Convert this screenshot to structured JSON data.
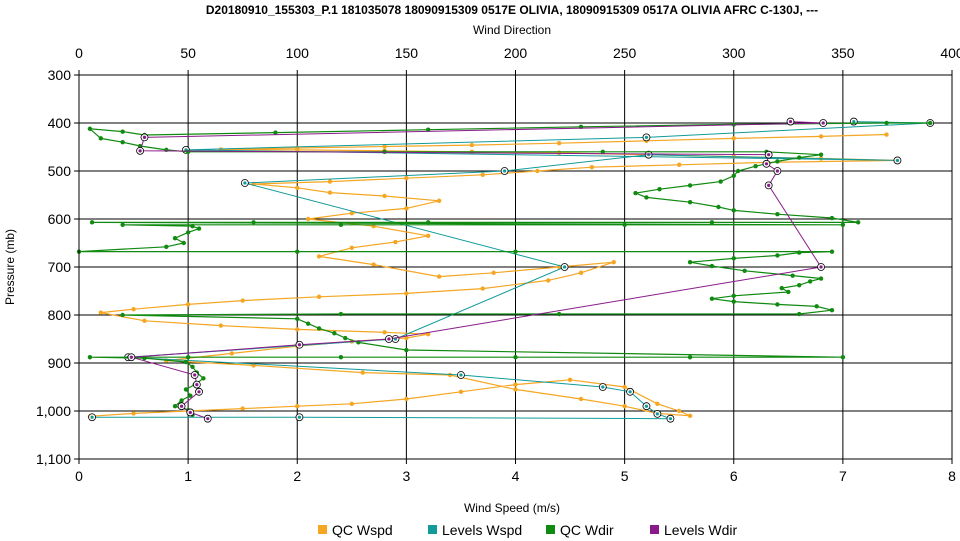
{
  "chart_data": {
    "type": "scatter",
    "title": "D20180910_155303_P.1 181035078 18090915309 0517E OLIVIA, 18090915309 0517A OLIVIA AFRC C-130J, ---",
    "y_axis": {
      "label": "Pressure (mb)",
      "range": [
        300,
        1100
      ],
      "inverted": true,
      "ticks": [
        "300",
        "400",
        "500",
        "600",
        "700",
        "800",
        "900",
        "1,000",
        "1,100"
      ]
    },
    "x_bottom": {
      "label": "Wind Speed (m/s)",
      "range": [
        0,
        8
      ],
      "ticks": [
        "0",
        "1",
        "2",
        "3",
        "4",
        "5",
        "6",
        "7",
        "8"
      ]
    },
    "x_top": {
      "label": "Wind Direction",
      "range": [
        0,
        400
      ],
      "ticks": [
        "0",
        "50",
        "100",
        "150",
        "200",
        "250",
        "300",
        "350",
        "400"
      ]
    },
    "grid": true,
    "legend_position": "bottom",
    "series": [
      {
        "name": "QC Wspd",
        "color": "#f5a623",
        "axis": "bottom",
        "marker": "dot",
        "points": [
          [
            0.1,
            1011
          ],
          [
            0.5,
            1005
          ],
          [
            1.0,
            1000
          ],
          [
            1.5,
            995
          ],
          [
            2.0,
            990
          ],
          [
            2.5,
            985
          ],
          [
            3.0,
            975
          ],
          [
            3.5,
            960
          ],
          [
            4.0,
            945
          ],
          [
            4.5,
            935
          ],
          [
            5.0,
            950
          ],
          [
            5.3,
            985
          ],
          [
            5.5,
            1000
          ],
          [
            5.6,
            1010
          ],
          [
            5.3,
            1005
          ],
          [
            5.0,
            990
          ],
          [
            4.6,
            975
          ],
          [
            4.0,
            955
          ],
          [
            3.4,
            925
          ],
          [
            2.6,
            920
          ],
          [
            1.6,
            905
          ],
          [
            0.8,
            895
          ],
          [
            1.4,
            880
          ],
          [
            2.0,
            865
          ],
          [
            2.5,
            855
          ],
          [
            3.0,
            848
          ],
          [
            3.2,
            840
          ],
          [
            2.8,
            836
          ],
          [
            2.0,
            830
          ],
          [
            1.3,
            822
          ],
          [
            0.6,
            812
          ],
          [
            0.2,
            795
          ],
          [
            0.5,
            788
          ],
          [
            1.0,
            778
          ],
          [
            1.5,
            770
          ],
          [
            2.2,
            762
          ],
          [
            3.0,
            755
          ],
          [
            3.7,
            745
          ],
          [
            4.3,
            728
          ],
          [
            4.6,
            712
          ],
          [
            4.9,
            690
          ],
          [
            4.4,
            700
          ],
          [
            3.8,
            712
          ],
          [
            3.3,
            720
          ],
          [
            2.7,
            695
          ],
          [
            2.2,
            678
          ],
          [
            2.5,
            660
          ],
          [
            2.9,
            648
          ],
          [
            3.2,
            635
          ],
          [
            2.7,
            615
          ],
          [
            2.1,
            600
          ],
          [
            2.5,
            588
          ],
          [
            3.0,
            578
          ],
          [
            3.3,
            562
          ],
          [
            2.8,
            552
          ],
          [
            2.3,
            545
          ],
          [
            2.0,
            535
          ],
          [
            1.6,
            527
          ],
          [
            2.3,
            522
          ],
          [
            3.0,
            515
          ],
          [
            3.7,
            508
          ],
          [
            4.2,
            500
          ],
          [
            4.7,
            492
          ],
          [
            5.5,
            487
          ],
          [
            6.3,
            482
          ],
          [
            7.5,
            478
          ],
          [
            6.8,
            474
          ],
          [
            6.0,
            470
          ],
          [
            5.2,
            466
          ],
          [
            4.4,
            462
          ],
          [
            3.6,
            460
          ],
          [
            2.8,
            458
          ],
          [
            2.0,
            456
          ],
          [
            1.3,
            455
          ],
          [
            2.0,
            452
          ],
          [
            2.8,
            449
          ],
          [
            3.6,
            446
          ],
          [
            4.4,
            442
          ],
          [
            5.2,
            437
          ],
          [
            6.0,
            432
          ],
          [
            6.8,
            428
          ],
          [
            7.4,
            424
          ]
        ]
      },
      {
        "name": "Levels Wspd",
        "color": "#139a9a",
        "axis": "bottom",
        "marker": "circle",
        "points": [
          [
            0.12,
            1013
          ],
          [
            2.02,
            1013
          ],
          [
            5.42,
            1016
          ],
          [
            5.3,
            1006
          ],
          [
            5.2,
            990
          ],
          [
            5.05,
            960
          ],
          [
            4.8,
            950
          ],
          [
            3.5,
            925
          ],
          [
            0.45,
            888
          ],
          [
            2.9,
            850
          ],
          [
            4.45,
            700
          ],
          [
            1.52,
            525
          ],
          [
            3.9,
            500
          ],
          [
            5.22,
            466
          ],
          [
            7.5,
            478
          ],
          [
            0.98,
            456
          ],
          [
            5.2,
            430
          ],
          [
            7.8,
            400
          ],
          [
            7.1,
            397
          ]
        ]
      },
      {
        "name": "QC Wdir",
        "color": "#108a10",
        "axis": "top",
        "marker": "dot",
        "points": [
          [
            52,
            1008
          ],
          [
            50,
            998
          ],
          [
            44,
            990
          ],
          [
            47,
            978
          ],
          [
            51,
            968
          ],
          [
            49,
            955
          ],
          [
            53,
            945
          ],
          [
            57,
            932
          ],
          [
            54,
            920
          ],
          [
            52,
            908
          ],
          [
            49,
            898
          ],
          [
            30,
            890
          ],
          [
            5,
            888
          ],
          [
            50,
            888
          ],
          [
            120,
            888
          ],
          [
            200,
            888
          ],
          [
            280,
            888
          ],
          [
            350,
            888
          ],
          [
            150,
            873
          ],
          [
            128,
            857
          ],
          [
            122,
            848
          ],
          [
            117,
            838
          ],
          [
            110,
            828
          ],
          [
            105,
            818
          ],
          [
            100,
            808
          ],
          [
            20,
            800
          ],
          [
            120,
            798
          ],
          [
            220,
            798
          ],
          [
            330,
            798
          ],
          [
            345,
            790
          ],
          [
            338,
            782
          ],
          [
            320,
            778
          ],
          [
            300,
            772
          ],
          [
            290,
            766
          ],
          [
            300,
            760
          ],
          [
            325,
            752
          ],
          [
            322,
            744
          ],
          [
            330,
            738
          ],
          [
            335,
            730
          ],
          [
            340,
            724
          ],
          [
            327,
            718
          ],
          [
            305,
            708
          ],
          [
            290,
            698
          ],
          [
            280,
            690
          ],
          [
            300,
            682
          ],
          [
            320,
            676
          ],
          [
            330,
            670
          ],
          [
            345,
            668
          ],
          [
            200,
            668
          ],
          [
            100,
            668
          ],
          [
            0,
            668
          ],
          [
            40,
            658
          ],
          [
            48,
            650
          ],
          [
            44,
            640
          ],
          [
            50,
            628
          ],
          [
            55,
            620
          ],
          [
            52,
            615
          ],
          [
            20,
            612
          ],
          [
            120,
            612
          ],
          [
            250,
            612
          ],
          [
            350,
            612
          ],
          [
            6,
            607
          ],
          [
            80,
            607
          ],
          [
            160,
            607
          ],
          [
            290,
            607
          ],
          [
            357,
            607
          ],
          [
            345,
            598
          ],
          [
            320,
            590
          ],
          [
            300,
            582
          ],
          [
            293,
            575
          ],
          [
            280,
            565
          ],
          [
            260,
            555
          ],
          [
            255,
            546
          ],
          [
            266,
            538
          ],
          [
            280,
            530
          ],
          [
            294,
            522
          ],
          [
            300,
            510
          ],
          [
            302,
            500
          ],
          [
            310,
            490
          ],
          [
            320,
            480
          ],
          [
            330,
            472
          ],
          [
            340,
            466
          ],
          [
            315,
            460
          ],
          [
            240,
            460
          ],
          [
            140,
            460
          ],
          [
            50,
            460
          ],
          [
            40,
            456
          ],
          [
            28,
            448
          ],
          [
            20,
            440
          ],
          [
            10,
            432
          ],
          [
            5,
            412
          ],
          [
            20,
            418
          ],
          [
            30,
            425
          ],
          [
            90,
            420
          ],
          [
            160,
            414
          ],
          [
            230,
            408
          ],
          [
            300,
            403
          ],
          [
            370,
            400
          ],
          [
            390,
            400
          ]
        ]
      },
      {
        "name": "Levels Wdir",
        "color": "#8a1a8a",
        "axis": "top",
        "marker": "circle",
        "points": [
          [
            59,
            1016
          ],
          [
            51,
            1003
          ],
          [
            47,
            990
          ],
          [
            55,
            960
          ],
          [
            54,
            945
          ],
          [
            53,
            925
          ],
          [
            24,
            888
          ],
          [
            101,
            862
          ],
          [
            142,
            850
          ],
          [
            340,
            700
          ],
          [
            316,
            530
          ],
          [
            320,
            500
          ],
          [
            315,
            485
          ],
          [
            316,
            466
          ],
          [
            28,
            458
          ],
          [
            30,
            430
          ],
          [
            341,
            400
          ],
          [
            326,
            397
          ]
        ]
      }
    ],
    "legend": [
      "QC Wspd",
      "Levels Wspd",
      "QC Wdir",
      "Levels Wdir"
    ]
  }
}
